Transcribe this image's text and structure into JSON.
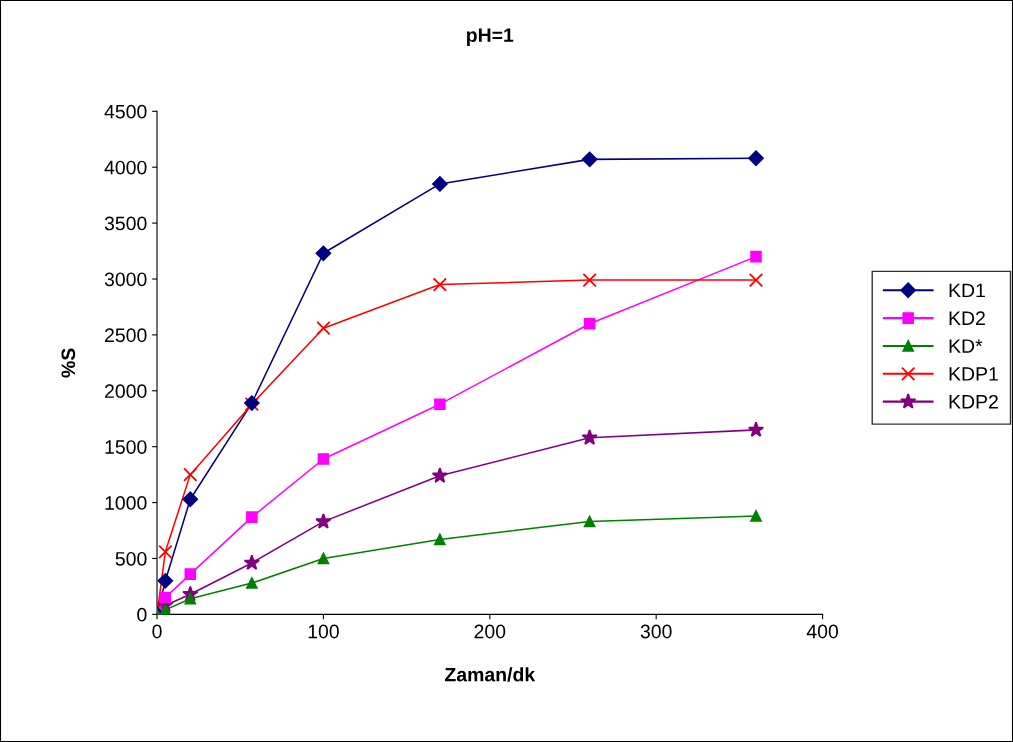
{
  "chart_data": {
    "type": "line",
    "title": "pH=1",
    "xlabel": "Zaman/dk",
    "ylabel": "%S",
    "x": [
      0,
      5,
      20,
      57,
      100,
      170,
      260,
      360
    ],
    "series": [
      {
        "name": "KD1",
        "color": "#000080",
        "marker": "diamond",
        "values": [
          0,
          300,
          1030,
          1890,
          3230,
          3850,
          4070,
          4080
        ]
      },
      {
        "name": "KD2",
        "color": "#ff00ff",
        "marker": "square",
        "values": [
          0,
          150,
          360,
          870,
          1390,
          1880,
          2600,
          3200
        ]
      },
      {
        "name": "KD*",
        "color": "#008000",
        "marker": "triangle",
        "values": [
          0,
          40,
          140,
          280,
          500,
          670,
          830,
          880
        ]
      },
      {
        "name": "KDP1",
        "color": "#ff0000",
        "marker": "cross",
        "values": [
          0,
          560,
          1250,
          1880,
          2560,
          2950,
          2990,
          2990
        ]
      },
      {
        "name": "KDP2",
        "color": "#800080",
        "marker": "star",
        "values": [
          0,
          80,
          180,
          460,
          830,
          1240,
          1580,
          1650
        ]
      }
    ],
    "xlim": [
      0,
      400
    ],
    "xticks": [
      0,
      100,
      200,
      300,
      400
    ],
    "ylim": [
      0,
      4500
    ],
    "yticks": [
      0,
      500,
      1000,
      1500,
      2000,
      2500,
      3000,
      3500,
      4000,
      4500
    ],
    "grid": false,
    "legend": "right",
    "line_style": "solid"
  }
}
